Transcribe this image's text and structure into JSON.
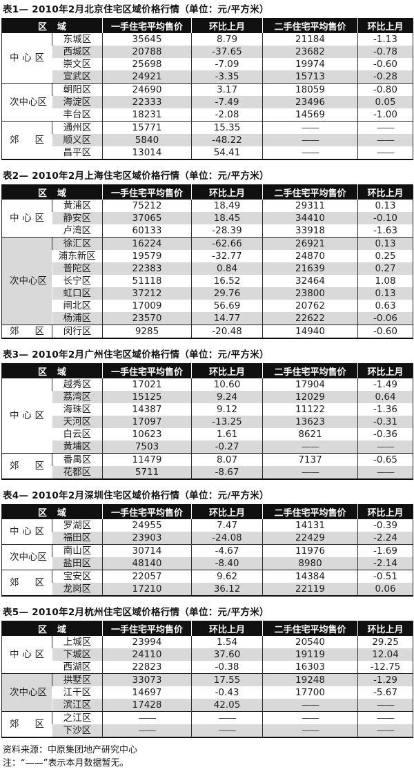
{
  "header": {
    "region": "区域",
    "new_price": "一手住宅平均售价",
    "new_mom": "环比上月",
    "used_price": "二手住宅平均售价",
    "used_mom": "环比上月"
  },
  "placeholder_dash": "——",
  "colors": {
    "header_bg": "#101010",
    "header_text": "#ffffff",
    "stripe": "#d9d9d9",
    "body_text": "#1c1c1c",
    "grid_line": "#2e2e2e"
  },
  "footer": {
    "source": "资料来源：中原集团地产研究中心",
    "note": "注：“——”表示本月数据暂无。"
  },
  "tables": [
    {
      "title": "表1— 2010年2月北京住宅区域价格行情（单位：元/平方米）",
      "groups": [
        {
          "label": "中心区",
          "rows": [
            {
              "district": "东城区",
              "new_price": "35645",
              "new_mom": "8.79",
              "used_price": "21184",
              "used_mom": "-1.13",
              "shaded": false
            },
            {
              "district": "西城区",
              "new_price": "20788",
              "new_mom": "-37.65",
              "used_price": "23682",
              "used_mom": "-0.78",
              "shaded": true
            },
            {
              "district": "崇文区",
              "new_price": "25698",
              "new_mom": "-7.09",
              "used_price": "19974",
              "used_mom": "-0.60",
              "shaded": false
            },
            {
              "district": "宣武区",
              "new_price": "24921",
              "new_mom": "-3.35",
              "used_price": "15713",
              "used_mom": "-0.28",
              "shaded": true
            }
          ]
        },
        {
          "label": "次中心区",
          "rows": [
            {
              "district": "朝阳区",
              "new_price": "24690",
              "new_mom": "3.17",
              "used_price": "18059",
              "used_mom": "-0.80",
              "shaded": false
            },
            {
              "district": "海淀区",
              "new_price": "22333",
              "new_mom": "-7.49",
              "used_price": "23496",
              "used_mom": "0.05",
              "shaded": true
            },
            {
              "district": "丰台区",
              "new_price": "18231",
              "new_mom": "-2.08",
              "used_price": "14569",
              "used_mom": "-1.00",
              "shaded": false
            }
          ]
        },
        {
          "label": "郊区",
          "rows": [
            {
              "district": "通州区",
              "new_price": "15771",
              "new_mom": "15.35",
              "used_price": "——",
              "used_mom": "——",
              "shaded": false
            },
            {
              "district": "顺义区",
              "new_price": "5840",
              "new_mom": "-48.22",
              "used_price": "——",
              "used_mom": "——",
              "shaded": true
            },
            {
              "district": "昌平区",
              "new_price": "13014",
              "new_mom": "54.41",
              "used_price": "——",
              "used_mom": "——",
              "shaded": false
            }
          ]
        }
      ]
    },
    {
      "title": "表2— 2010年2月上海住宅区域价格行情（单位：元/平方米）",
      "groups": [
        {
          "label": "中心区",
          "rows": [
            {
              "district": "黄浦区",
              "new_price": "75212",
              "new_mom": "18.49",
              "used_price": "29311",
              "used_mom": "0.13",
              "shaded": false
            },
            {
              "district": "静安区",
              "new_price": "37065",
              "new_mom": "18.45",
              "used_price": "34410",
              "used_mom": "-0.10",
              "shaded": true
            },
            {
              "district": "卢湾区",
              "new_price": "60133",
              "new_mom": "-28.39",
              "used_price": "33918",
              "used_mom": "-1.63",
              "shaded": false
            }
          ]
        },
        {
          "label": "次中心区",
          "rows": [
            {
              "district": "徐汇区",
              "new_price": "16224",
              "new_mom": "-62.66",
              "used_price": "26921",
              "used_mom": "0.13",
              "shaded": true
            },
            {
              "district": "浦东新区",
              "new_price": "19579",
              "new_mom": "-32.77",
              "used_price": "24870",
              "used_mom": "0.25",
              "shaded": false
            },
            {
              "district": "普陀区",
              "new_price": "22383",
              "new_mom": "0.84",
              "used_price": "21639",
              "used_mom": "0.27",
              "shaded": true
            },
            {
              "district": "长宁区",
              "new_price": "51118",
              "new_mom": "16.52",
              "used_price": "32464",
              "used_mom": "1.08",
              "shaded": false
            },
            {
              "district": "虹口区",
              "new_price": "37212",
              "new_mom": "29.76",
              "used_price": "23800",
              "used_mom": "0.13",
              "shaded": true
            },
            {
              "district": "闸北区",
              "new_price": "17009",
              "new_mom": "56.69",
              "used_price": "20762",
              "used_mom": "0.63",
              "shaded": false
            },
            {
              "district": "杨浦区",
              "new_price": "23570",
              "new_mom": "14.77",
              "used_price": "22622",
              "used_mom": "-0.06",
              "shaded": true
            }
          ]
        },
        {
          "label": "郊区",
          "rows": [
            {
              "district": "闵行区",
              "new_price": "9285",
              "new_mom": "-20.48",
              "used_price": "14940",
              "used_mom": "-0.60",
              "shaded": false
            }
          ]
        }
      ]
    },
    {
      "title": "表3— 2010年2月广州住宅区域价格行情（单位：元/平方米）",
      "groups": [
        {
          "label": "中心区",
          "rows": [
            {
              "district": "越秀区",
              "new_price": "17021",
              "new_mom": "10.60",
              "used_price": "17904",
              "used_mom": "-1.49",
              "shaded": false
            },
            {
              "district": "荔湾区",
              "new_price": "15125",
              "new_mom": "9.24",
              "used_price": "12029",
              "used_mom": "0.64",
              "shaded": true
            },
            {
              "district": "海珠区",
              "new_price": "14387",
              "new_mom": "9.12",
              "used_price": "11122",
              "used_mom": "-1.36",
              "shaded": false
            },
            {
              "district": "天河区",
              "new_price": "17097",
              "new_mom": "-13.25",
              "used_price": "13623",
              "used_mom": "-0.31",
              "shaded": true
            },
            {
              "district": "白云区",
              "new_price": "10623",
              "new_mom": "1.61",
              "used_price": "8621",
              "used_mom": "-0.36",
              "shaded": false
            },
            {
              "district": "黄埔区",
              "new_price": "7503",
              "new_mom": "-0.27",
              "used_price": "——",
              "used_mom": "——",
              "shaded": true
            }
          ]
        },
        {
          "label": "郊区",
          "rows": [
            {
              "district": "番禺区",
              "new_price": "11479",
              "new_mom": "8.07",
              "used_price": "7137",
              "used_mom": "-0.65",
              "shaded": false
            },
            {
              "district": "花都区",
              "new_price": "5711",
              "new_mom": "-8.67",
              "used_price": "——",
              "used_mom": "——",
              "shaded": true
            }
          ]
        }
      ]
    },
    {
      "title": "表4— 2010年2月深圳住宅区域价格行情（单位：元/平方米）",
      "groups": [
        {
          "label": "中心区",
          "rows": [
            {
              "district": "罗湖区",
              "new_price": "24955",
              "new_mom": "7.47",
              "used_price": "14131",
              "used_mom": "-0.39",
              "shaded": false
            },
            {
              "district": "福田区",
              "new_price": "23903",
              "new_mom": "-24.08",
              "used_price": "22429",
              "used_mom": "-2.24",
              "shaded": true
            }
          ]
        },
        {
          "label": "次中心区",
          "rows": [
            {
              "district": "南山区",
              "new_price": "30714",
              "new_mom": "-4.67",
              "used_price": "11976",
              "used_mom": "-1.69",
              "shaded": false
            },
            {
              "district": "盐田区",
              "new_price": "48140",
              "new_mom": "-8.40",
              "used_price": "8980",
              "used_mom": "-2.14",
              "shaded": true
            }
          ]
        },
        {
          "label": "郊区",
          "rows": [
            {
              "district": "宝安区",
              "new_price": "22057",
              "new_mom": "9.62",
              "used_price": "14384",
              "used_mom": "-0.51",
              "shaded": false
            },
            {
              "district": "龙岗区",
              "new_price": "17210",
              "new_mom": "36.12",
              "used_price": "22119",
              "used_mom": "0.06",
              "shaded": true
            }
          ]
        }
      ]
    },
    {
      "title": "表5— 2010年2月杭州住宅区域价格行情（单位：元/平方米）",
      "groups": [
        {
          "label": "中心区",
          "rows": [
            {
              "district": "上城区",
              "new_price": "23994",
              "new_mom": "1.54",
              "used_price": "20540",
              "used_mom": "29.25",
              "shaded": false
            },
            {
              "district": "下城区",
              "new_price": "24110",
              "new_mom": "37.60",
              "used_price": "19119",
              "used_mom": "12.04",
              "shaded": true
            },
            {
              "district": "西湖区",
              "new_price": "22823",
              "new_mom": "-0.38",
              "used_price": "16303",
              "used_mom": "-12.75",
              "shaded": false
            }
          ]
        },
        {
          "label": "次中心区",
          "rows": [
            {
              "district": "拱墅区",
              "new_price": "33073",
              "new_mom": "17.55",
              "used_price": "19248",
              "used_mom": "-1.29",
              "shaded": true
            },
            {
              "district": "江干区",
              "new_price": "14697",
              "new_mom": "-0.43",
              "used_price": "17700",
              "used_mom": "-5.67",
              "shaded": false
            },
            {
              "district": "滨江区",
              "new_price": "17428",
              "new_mom": "42.05",
              "used_price": "——",
              "used_mom": "——",
              "shaded": true
            }
          ]
        },
        {
          "label": "郊区",
          "rows": [
            {
              "district": "之江区",
              "new_price": "——",
              "new_mom": "——",
              "used_price": "——",
              "used_mom": "——",
              "shaded": false
            },
            {
              "district": "下沙区",
              "new_price": "——",
              "new_mom": "——",
              "used_price": "——",
              "used_mom": "——",
              "shaded": true
            }
          ]
        }
      ]
    }
  ]
}
